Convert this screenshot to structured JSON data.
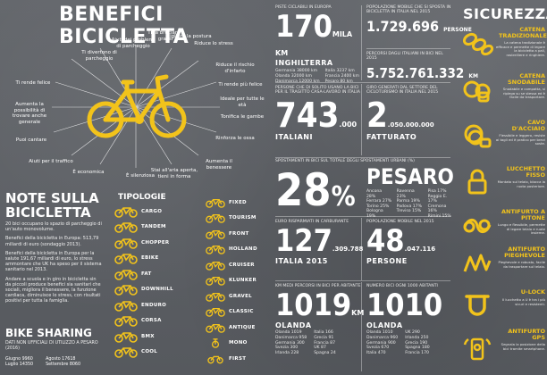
{
  "colors": {
    "accent": "#f2c31b",
    "background": "#5e6166",
    "text": "#ffffff"
  },
  "left": {
    "title": "BENEFICI BICICLETTA",
    "benefits": [
      "Ti divertono di parcheggio",
      "Aiuti dei problemi di parcheggio",
      "Ti fa bruciare i grassi",
      "Migliora la postura",
      "Riduce lo stress",
      "Riduce il rischio d'infarto",
      "Ti rende più felice",
      "Ideale per tutte le età",
      "Tonifica le gambe",
      "Rinforza le ossa",
      "Aumenta il benessere",
      "Stai all'aria aperta, tieni in forma",
      "È silenziosa",
      "È economica",
      "Aiuti per il traffico",
      "Puoi cantare",
      "Aumenta la possibilità di trovare anche generale",
      "Ti rende felice"
    ],
    "notes_title": "NOTE SULLA BICICLETTA",
    "notes": [
      "20 bici occupano lo spazio di parcheggio di un'auto monovolume.",
      "Benefici della bicicletta in Europa: 513,79 miliardi di euro (sondaggio 2013).",
      "Benefici della bicicletta in Europa per la salute 191,67 miliardi di euro, lo stress ammontare che UK ha speso per il sistema sanitario nel 2013.",
      "Andare a scuola e in giro in bicicletta sin da piccoli produce benefici sia sanitari che sociali, migliora il benessere, la funzione cardiaca, diminuisce lo stress, con risultati positivi per tutta la famiglia."
    ],
    "types_title": "TIPOLOGIE",
    "types_left": [
      "CARGO",
      "TANDEM",
      "CHOPPER",
      "EBIKE",
      "FAT",
      "DOWNHILL",
      "ENDURO",
      "CORSA",
      "BMX",
      "COOL"
    ],
    "types_right": [
      "FIXED",
      "TOURISM",
      "FRONT",
      "HOLLAND",
      "CRUISER",
      "KLUNKER",
      "GRAVEL",
      "CLASSIC",
      "ANTIQUE",
      "MONO",
      "FIRST"
    ],
    "share_title": "BIKE SHARING",
    "share_sub": "DATI NON UFFICIALI DI UTILIZZO A PESARO (2016)",
    "share_col1": [
      "Giugno 9960",
      "Luglio 14350"
    ],
    "share_col2": [
      "Agosto 17618",
      "Settembre 8060"
    ]
  },
  "middle": {
    "s1_label": "PISTE CICLABILI IN EUROPA",
    "s1_value": "170",
    "s1_unit": "MILA KM",
    "s1_country": "INGHILTERRA",
    "s1_list_a": [
      "Germania 38000 km",
      "Olanda 32000 km",
      "Danimarca 12000 km"
    ],
    "s1_list_b": [
      "Italia 3237 km",
      "Francia 2400 km",
      "Pesaro 80 km"
    ],
    "s2_label": "POPOLAZIONE MOBILE CHE SI SPOSTA IN BICICLETTA IN ITALIA NEL 2015",
    "s2_value": "1.729.696",
    "s2_unit": "PERSONE",
    "s3_label": "PERCORSI DAGLI ITALIANI IN BICI NEL 2015",
    "s3_value": "5.752.761.332",
    "s3_unit": "KM",
    "s4_label": "PERSONE CHE DI SOLITO USANO LA BICI PER IL TRAGITTO CASA-LAVORO IN ITALIA",
    "s4_value": "743",
    "s4_small": ".000",
    "s4_unit": "ITALIANI",
    "s5_label": "GIRO GENERATI DAL SETTORE DEL CICLOTURISMO IN ITALIA NEL 2015",
    "s5_value": "2",
    "s5_small": ".050.000.000",
    "s5_unit": "FATTURATO",
    "s6_label": "SPOSTAMENTI IN BICI SUL TOTALE DEGLI SPOSTAMENTI URBANI (%)",
    "s6_value": "28",
    "s6_pct": "%",
    "s6_city": "PESARO",
    "s6_cols": [
      [
        "Ancona 28%",
        "Ferrara 27%",
        "Torino 25%",
        "Bologna 19%"
      ],
      [
        "Ravenna 23%",
        "Parma 19%",
        "Padova 17%",
        "Treviso 15%"
      ],
      [
        "Pisa 17%",
        "Reggio E. 17%",
        "Cremona 16%",
        "Rimini 15%"
      ]
    ],
    "s7_label": "EURO RISPARMIATI IN CARBURANTE",
    "s7_value": "127",
    "s7_small": ".309.788",
    "s7_unit": "ITALIA 2015",
    "s8_label": "POPOLAZIONE MOBILE NEL 2015",
    "s8_value": "48",
    "s8_small": ".047.116",
    "s8_unit": "PERSONE",
    "s9_label": "KM MEDI PERCORSI IN BICI PER ABITANTE",
    "s9_value": "1019",
    "s9_unit": "KM",
    "s9_country": "OLANDA",
    "s9_list_a": [
      "Olanda 1019",
      "Danimarca 958",
      "Germania 300",
      "Svezia 300",
      "Irlanda 228"
    ],
    "s9_list_b": [
      "Italia 166",
      "Grecia 91",
      "Francia 87",
      "UK 87",
      "Spagna 24"
    ],
    "s10_label": "NUMERO BICI OGNI 1000 ABITANTI",
    "s10_value": "1010",
    "s10_country": "OLANDA",
    "s10_list_a": [
      "Olanda 1010",
      "Danimarca 960",
      "Germania 900",
      "Svezia 670",
      "Italia 470"
    ],
    "s10_list_b": [
      "UK 290",
      "Irlanda 250",
      "Grecia 190",
      "Spagna 180",
      "Francia 170"
    ]
  },
  "right": {
    "title": "SICUREZZA",
    "items": [
      {
        "name": "CATENA TRADIZIONALE",
        "icon": "chain-icon",
        "desc": "La catena tradizionale è efficace e permette di legare la bicicletta a pali, rastrelliere e ringhiere."
      },
      {
        "name": "CATENA SNODABILE",
        "icon": "folding-chain-icon",
        "desc": "Snodabile e compatta, si ripiega su se stessa ed è facile da trasportare."
      },
      {
        "name": "CAVO D'ACCIAIO",
        "icon": "cable-lock-icon",
        "desc": "Flessibile e leggero, resiste ai tagli ed è pratico per brevi soste."
      },
      {
        "name": "LUCCHETTO FISSO",
        "icon": "padlock-icon",
        "desc": "Montato sul telaio, blocca la ruota posteriore."
      },
      {
        "name": "ANTIFURTO A PITONE",
        "icon": "python-lock-icon",
        "desc": "Lungo e flessibile, permette di legare telaio e ruote insieme."
      },
      {
        "name": "ANTIFURTO PIEGHEVOLE",
        "icon": "folding-lock-icon",
        "desc": "Pieghevole e robusto, facile da trasportare sul telaio."
      },
      {
        "name": "U-LOCK",
        "icon": "u-lock-icon",
        "desc": "Il lucchetto a U è tra i più sicuri e resistenti."
      },
      {
        "name": "ANTIFURTO GPS",
        "icon": "gps-icon",
        "desc": "Segnala la posizione della bici tramite smartphone."
      }
    ]
  }
}
